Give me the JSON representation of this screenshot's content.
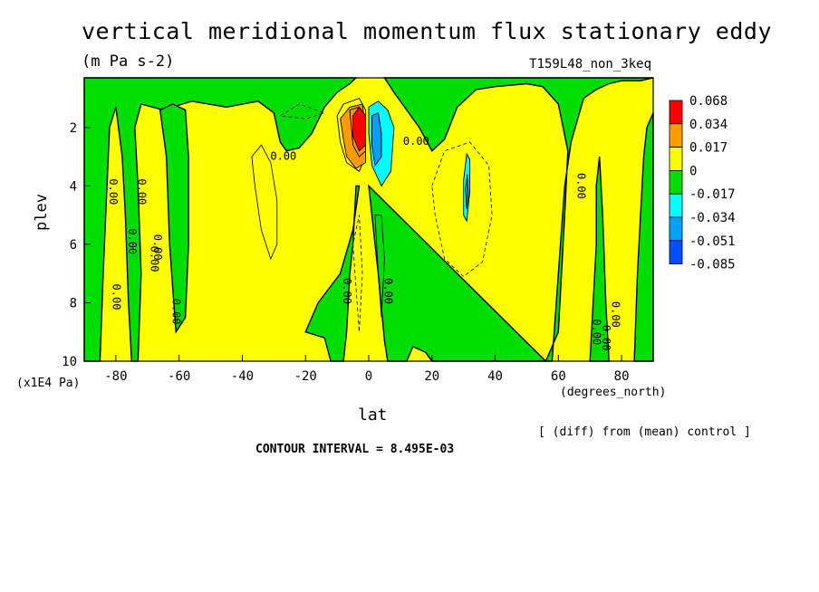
{
  "chart_data": {
    "type": "heatmap",
    "title": "vertical meridional momentum flux stationary eddy",
    "units": "(m Pa s-2)",
    "run_name": "T159L48_non_3keq",
    "xlabel": "lat",
    "x_units": "(degrees_north)",
    "ylabel": "plev",
    "y_units": "(x1E4 Pa)",
    "xlim": [
      -90,
      90
    ],
    "ylim": [
      10,
      0.3
    ],
    "x_ticks": [
      "-80",
      "-60",
      "-40",
      "-20",
      "0",
      "20",
      "40",
      "60",
      "80"
    ],
    "x_tick_values": [
      -80,
      -60,
      -40,
      -20,
      0,
      20,
      40,
      60,
      80
    ],
    "y_ticks": [
      "2",
      "4",
      "6",
      "8",
      "10"
    ],
    "y_tick_values": [
      2,
      4,
      6,
      8,
      10
    ],
    "colorbar": {
      "levels": [
        "0.068",
        "0.034",
        "0.017",
        "0",
        "-0.017",
        "-0.034",
        "-0.051",
        "-0.085"
      ],
      "colors": [
        "#ff0000",
        "#ff9a00",
        "#ffff00",
        "#00dd00",
        "#00ffff",
        "#00a0ff",
        "#0050ff"
      ]
    },
    "contour_labels": [
      "0.00",
      "0.00",
      "0.00",
      "0.00",
      "0.00",
      "0.00",
      "0.00",
      "0.00",
      "0.00",
      "0.00",
      "0.00",
      "0.00",
      "0.00",
      "0.00",
      "0.00"
    ],
    "diff_note": "[ (diff) from (mean) control ]",
    "contour_interval": "CONTOUR INTERVAL = 8.495E-03"
  }
}
